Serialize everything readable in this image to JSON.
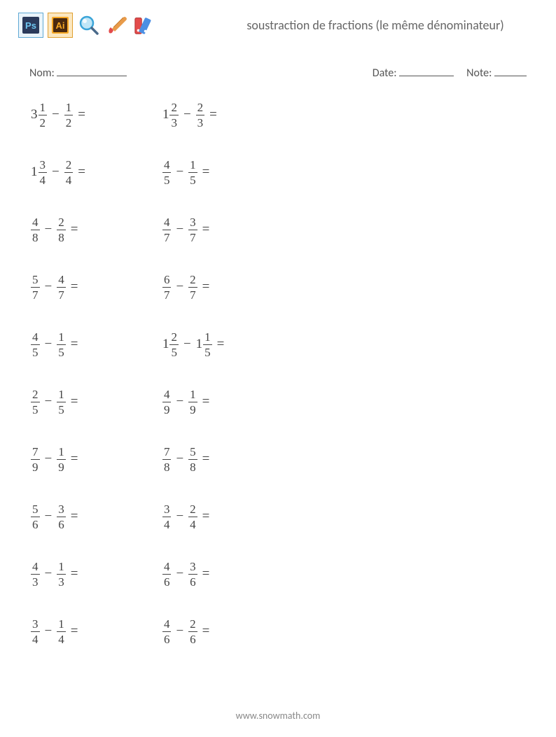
{
  "title": "soustraction de fractions (le même dénominateur)",
  "labels": {
    "name": "Nom:",
    "date": "Date:",
    "note": "Note:"
  },
  "operator": "−",
  "equals": "=",
  "icons": [
    {
      "name": "ps-icon",
      "type": "ps"
    },
    {
      "name": "ai-icon",
      "type": "ai"
    },
    {
      "name": "magnifier-icon",
      "type": "magnifier"
    },
    {
      "name": "brush-icon",
      "type": "brush"
    },
    {
      "name": "swatches-icon",
      "type": "swatches"
    }
  ],
  "columns": [
    [
      {
        "a": {
          "w": "3",
          "n": "1",
          "d": "2"
        },
        "b": {
          "n": "1",
          "d": "2"
        }
      },
      {
        "a": {
          "w": "1",
          "n": "3",
          "d": "4"
        },
        "b": {
          "n": "2",
          "d": "4"
        }
      },
      {
        "a": {
          "n": "4",
          "d": "8"
        },
        "b": {
          "n": "2",
          "d": "8"
        }
      },
      {
        "a": {
          "n": "5",
          "d": "7"
        },
        "b": {
          "n": "4",
          "d": "7"
        }
      },
      {
        "a": {
          "n": "4",
          "d": "5"
        },
        "b": {
          "n": "1",
          "d": "5"
        }
      },
      {
        "a": {
          "n": "2",
          "d": "5"
        },
        "b": {
          "n": "1",
          "d": "5"
        }
      },
      {
        "a": {
          "n": "7",
          "d": "9"
        },
        "b": {
          "n": "1",
          "d": "9"
        }
      },
      {
        "a": {
          "n": "5",
          "d": "6"
        },
        "b": {
          "n": "3",
          "d": "6"
        }
      },
      {
        "a": {
          "n": "4",
          "d": "3"
        },
        "b": {
          "n": "1",
          "d": "3"
        }
      },
      {
        "a": {
          "n": "3",
          "d": "4"
        },
        "b": {
          "n": "1",
          "d": "4"
        }
      }
    ],
    [
      {
        "a": {
          "w": "1",
          "n": "2",
          "d": "3"
        },
        "b": {
          "n": "2",
          "d": "3"
        }
      },
      {
        "a": {
          "n": "4",
          "d": "5"
        },
        "b": {
          "n": "1",
          "d": "5"
        }
      },
      {
        "a": {
          "n": "4",
          "d": "7"
        },
        "b": {
          "n": "3",
          "d": "7"
        }
      },
      {
        "a": {
          "n": "6",
          "d": "7"
        },
        "b": {
          "n": "2",
          "d": "7"
        }
      },
      {
        "a": {
          "w": "1",
          "n": "2",
          "d": "5"
        },
        "b": {
          "w": "1",
          "n": "1",
          "d": "5"
        }
      },
      {
        "a": {
          "n": "4",
          "d": "9"
        },
        "b": {
          "n": "1",
          "d": "9"
        }
      },
      {
        "a": {
          "n": "7",
          "d": "8"
        },
        "b": {
          "n": "5",
          "d": "8"
        }
      },
      {
        "a": {
          "n": "3",
          "d": "4"
        },
        "b": {
          "n": "2",
          "d": "4"
        }
      },
      {
        "a": {
          "n": "4",
          "d": "6"
        },
        "b": {
          "n": "3",
          "d": "6"
        }
      },
      {
        "a": {
          "n": "4",
          "d": "6"
        },
        "b": {
          "n": "2",
          "d": "6"
        }
      }
    ]
  ],
  "footer": "www.snowmath.com",
  "colors": {
    "text": "#555555",
    "math": "#444444",
    "ps_bg": "#2b3a5b",
    "ps_border": "#5fa9d4",
    "ai_bg": "#f7a823",
    "ai_border": "#5b3a1a",
    "magnifier": "#3aa4d8",
    "brush": "#e89b4a",
    "swatch_red": "#e34b4b",
    "swatch_blue": "#4b8fe3"
  }
}
